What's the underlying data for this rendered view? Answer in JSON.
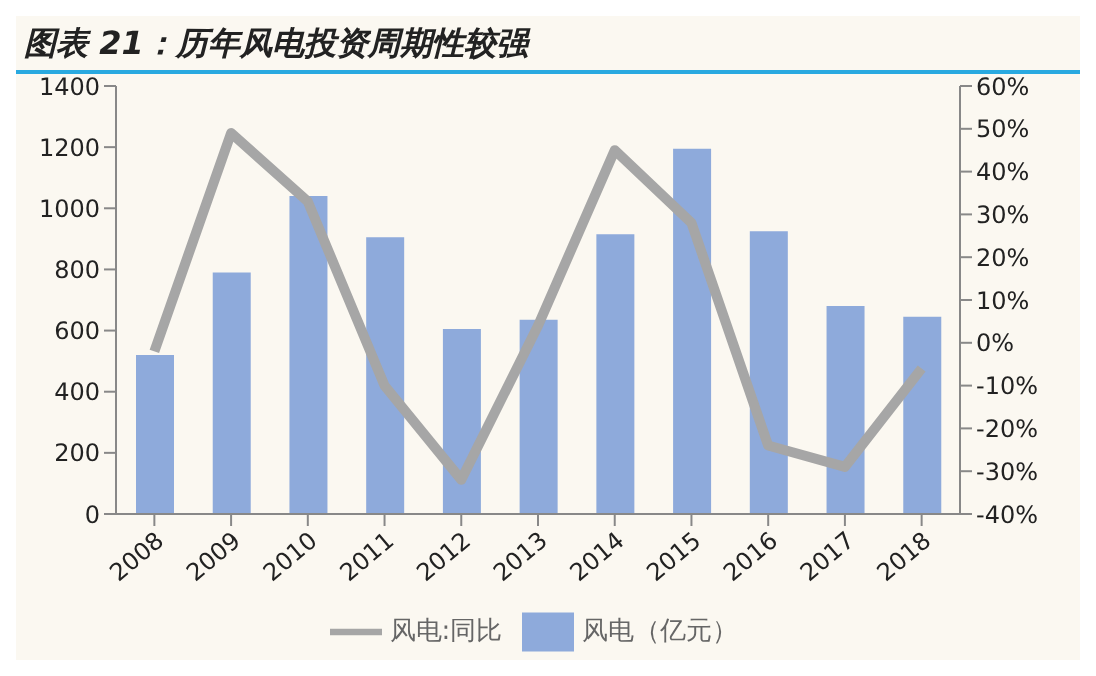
{
  "chart_data": {
    "type": "bar",
    "title": "图表 21：历年风电投资周期性较强",
    "categories": [
      "2008",
      "2009",
      "2010",
      "2011",
      "2012",
      "2013",
      "2014",
      "2015",
      "2016",
      "2017",
      "2018"
    ],
    "series": [
      {
        "name": "风电（亿元）",
        "color": "#8eaadb",
        "values": [
          520,
          790,
          1040,
          905,
          605,
          635,
          915,
          1195,
          925,
          680,
          645
        ]
      },
      {
        "name": "风电:同比",
        "type": "line",
        "axis": "y2",
        "color": "#a6a6a6",
        "values": [
          -2,
          49,
          33,
          -10,
          -32,
          4,
          45,
          28,
          -24,
          -29,
          -6
        ]
      }
    ],
    "ylim": [
      0,
      1400
    ],
    "yticks": [
      0,
      200,
      400,
      600,
      800,
      1000,
      1200,
      1400
    ],
    "y2lim": [
      -40,
      60
    ],
    "y2ticks": [
      {
        "value": -40,
        "label": "-40%"
      },
      {
        "value": -30,
        "label": "-30%"
      },
      {
        "value": -20,
        "label": "-20%"
      },
      {
        "value": -10,
        "label": "-10%"
      },
      {
        "value": 0,
        "label": "0%"
      },
      {
        "value": 10,
        "label": "10%"
      },
      {
        "value": 20,
        "label": "20%"
      },
      {
        "value": 30,
        "label": "30%"
      },
      {
        "value": 40,
        "label": "40%"
      },
      {
        "value": 50,
        "label": "50%"
      },
      {
        "value": 60,
        "label": "60%"
      }
    ],
    "grid": false,
    "legend": "bottom",
    "marker": "none"
  }
}
